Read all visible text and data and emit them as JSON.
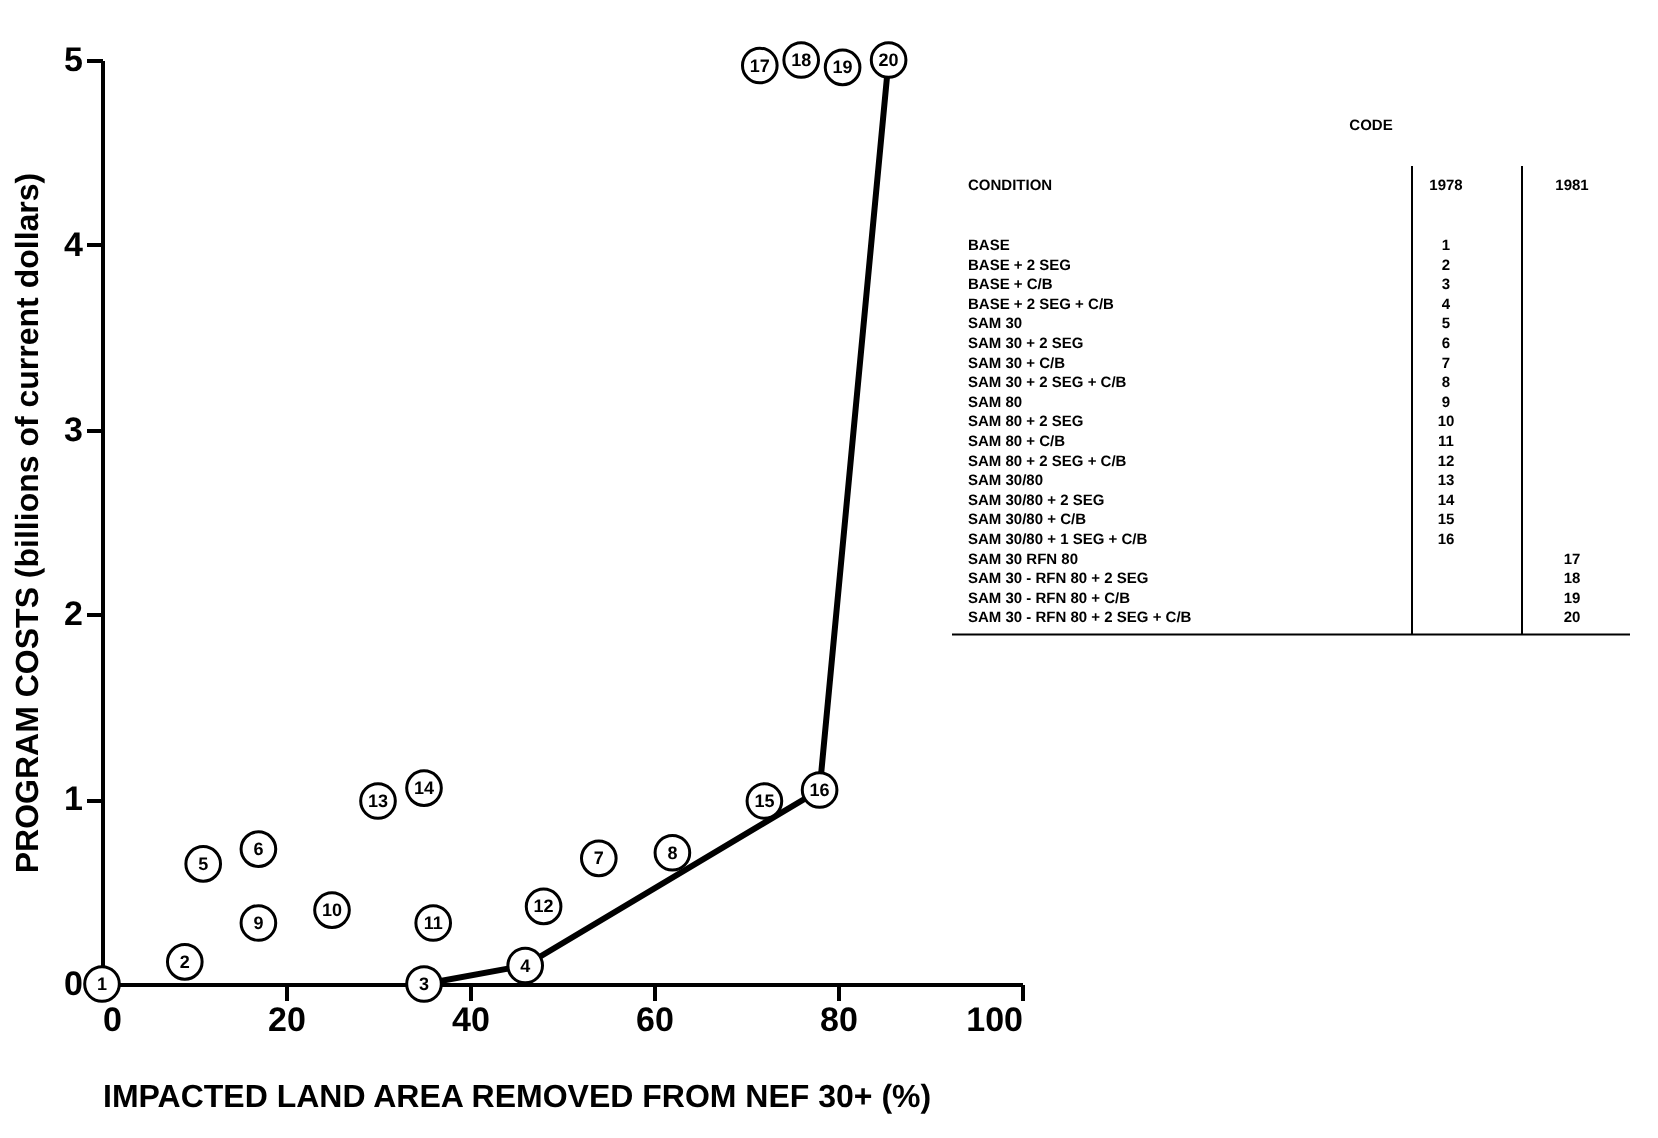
{
  "chart_data": {
    "type": "scatter",
    "xlabel": "IMPACTED LAND AREA REMOVED FROM NEF 30+ (%)",
    "ylabel": "PROGRAM COSTS (billions of current dollars)",
    "xlim": [
      0,
      100
    ],
    "xticks": [
      0,
      20,
      40,
      60,
      80,
      100
    ],
    "ylim": [
      0,
      5
    ],
    "yticks": [
      0,
      1,
      2,
      3,
      4,
      5
    ],
    "grid": false,
    "series": [
      {
        "color": "#000000",
        "marker": "circle",
        "x": [
          0,
          9,
          35,
          46,
          11,
          17,
          54,
          62,
          17,
          25,
          36,
          48,
          30,
          35,
          72,
          78
        ],
        "values": [
          0,
          0.12,
          0,
          0.1,
          0.65,
          0.73,
          0.68,
          0.71,
          0.33,
          0.4,
          0.33,
          0.42,
          0.99,
          1.06,
          0.99,
          1.05
        ]
      },
      {
        "color": "#000000",
        "marker": "circle",
        "x": [
          71.5,
          76,
          80.5,
          85.5
        ],
        "values": [
          4.97,
          5.0,
          4.96,
          5.0
        ]
      },
      {
        "type": "line",
        "color": "#000000",
        "line_style": "solid",
        "x": [
          35,
          46,
          78,
          85.5
        ],
        "values": [
          0,
          0.1,
          1.05,
          5.0
        ]
      }
    ],
    "annotations": [
      "CODE",
      "CONDITION",
      "1978",
      "1981",
      "BASE",
      "BASE + 2 SEG",
      "BASE + C/B",
      "BASE + 2 SEG + C/B",
      "SAM 30",
      "SAM 30 + 2 SEG",
      "SAM 30 + C/B",
      "SAM 30 + 2 SEG + C/B",
      "SAM 80",
      "SAM 80 + 2 SEG",
      "SAM 80 + C/B",
      "SAM 80 + 2 SEG + C/B",
      "SAM 30/80",
      "SAM 30/80 + 2 SEG",
      "SAM 30/80 + C/B",
      "SAM 30/80 + 1 SEG + C/B",
      "SAM 30 RFN 80",
      "SAM 30 - RFN 80 + 2 SEG",
      "SAM 30 - RFN 80 + C/B",
      "SAM 30 - RFN 80 + 2 SEG + C/B",
      {
        "text": "1",
        "x": 0,
        "y": 0
      },
      {
        "text": "2",
        "x": 9,
        "y": 0.12
      },
      {
        "text": "3",
        "x": 35,
        "y": 0
      },
      {
        "text": "4",
        "x": 46,
        "y": 0.1
      },
      {
        "text": "5",
        "x": 11,
        "y": 0.65
      },
      {
        "text": "6",
        "x": 17,
        "y": 0.73
      },
      {
        "text": "7",
        "x": 54,
        "y": 0.68
      },
      {
        "text": "8",
        "x": 62,
        "y": 0.71
      },
      {
        "text": "9",
        "x": 17,
        "y": 0.33
      },
      {
        "text": "10",
        "x": 25,
        "y": 0.4
      },
      {
        "text": "11",
        "x": 36,
        "y": 0.33
      },
      {
        "text": "12",
        "x": 48,
        "y": 0.42
      },
      {
        "text": "13",
        "x": 30,
        "y": 0.99
      },
      {
        "text": "14",
        "x": 35,
        "y": 1.06
      },
      {
        "text": "15",
        "x": 72,
        "y": 0.99
      },
      {
        "text": "16",
        "x": 78,
        "y": 1.05
      },
      {
        "text": "17",
        "x": 71.5,
        "y": 4.97
      },
      {
        "text": "18",
        "x": 76,
        "y": 5.0
      },
      {
        "text": "19",
        "x": 80.5,
        "y": 4.96
      },
      {
        "text": "20",
        "x": 85.5,
        "y": 5.0
      }
    ]
  }
}
